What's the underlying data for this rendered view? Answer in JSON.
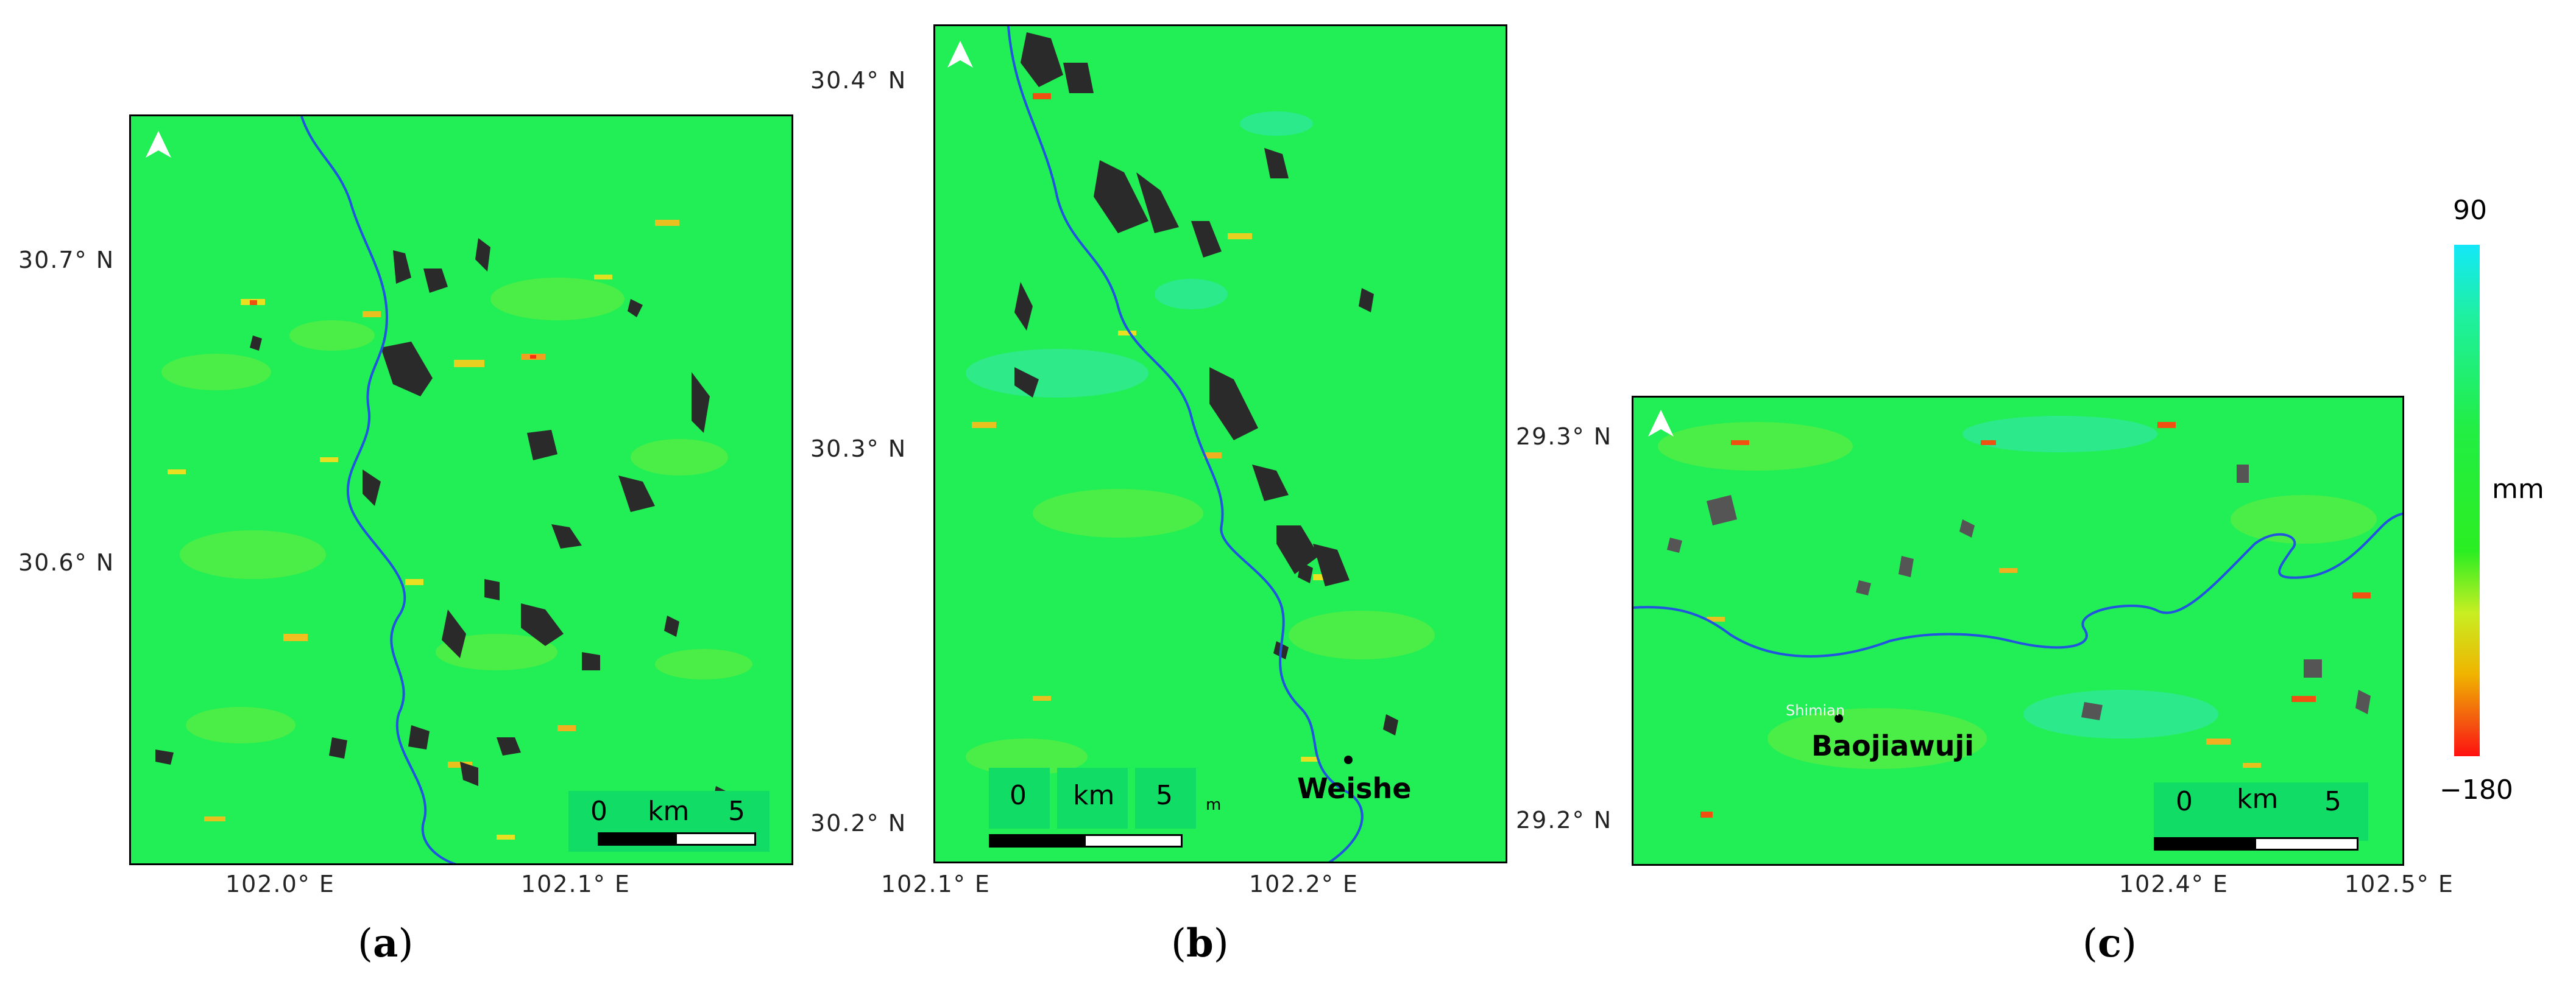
{
  "panels": {
    "a": {
      "caption": "a",
      "lat_ticks": [
        "30.7° N",
        "30.6° N"
      ],
      "lon_ticks": [
        "102.0° E",
        "102.1° E"
      ],
      "scale": {
        "zero": "0",
        "unit": "km",
        "max": "5"
      }
    },
    "b": {
      "caption": "b",
      "lat_ticks": [
        "30.4° N",
        "30.3° N",
        "30.2° N"
      ],
      "lon_ticks": [
        "102.1° E",
        "102.2° E"
      ],
      "scale": {
        "zero": "0",
        "unit": "km",
        "max": "5",
        "extra": "m"
      },
      "place": "Weishe"
    },
    "c": {
      "caption": "c",
      "lat_ticks": [
        "29.3° N",
        "29.2° N"
      ],
      "lon_ticks": [
        "102.4° E",
        "102.5° E"
      ],
      "scale": {
        "zero": "0",
        "unit": "km",
        "max": "5"
      },
      "place": "Baojiawuji",
      "place_small": "Shimian"
    }
  },
  "colorbar": {
    "max": "90",
    "min": "−180",
    "unit": "mm",
    "colors": [
      "#14e8f8",
      "#22ee44",
      "#f0b400",
      "#ff1010"
    ]
  },
  "colors": {
    "background": "#22ee55",
    "river": "#2255dd",
    "shadow": "#2a2a2a"
  }
}
